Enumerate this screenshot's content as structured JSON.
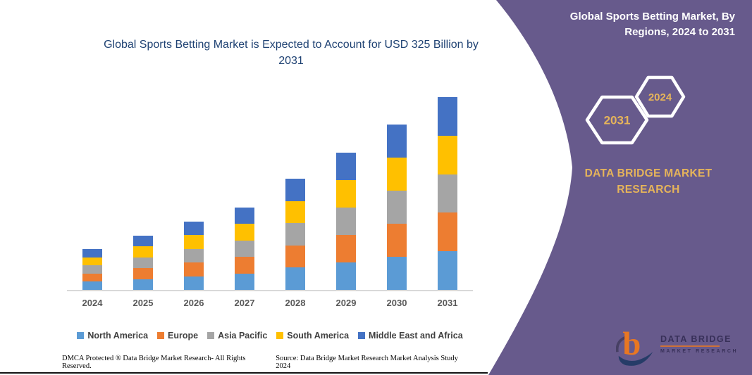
{
  "left_panel": {
    "title": "Global Sports Betting Market is Expected to Account for USD 325 Billion by 2031",
    "footer_left": "DMCA Protected ® Data Bridge Market Research-  All Rights Reserved.",
    "footer_right": "Source: Data Bridge Market Research  Market Analysis Study 2024"
  },
  "right_panel": {
    "title": "Global Sports Betting Market, By Regions, 2024 to 2031",
    "hexagon_back_label": "2031",
    "hexagon_front_label": "2024",
    "brand_text": "DATA BRIDGE MARKET RESEARCH",
    "logo_line1": "DATA BRIDGE",
    "logo_line2": "MARKET RESEARCH",
    "colors": {
      "background_purple": "#675A8C",
      "accent_gold": "#E6B45A",
      "title_white": "#FFFFFF",
      "logo_orange": "#E87722",
      "logo_blue": "#1F3864"
    }
  },
  "chart_data": {
    "type": "bar",
    "stacked": true,
    "title": "Global Sports Betting Market is Expected to Account for USD 325 Billion by 2031",
    "subtitle": "Global Sports Betting Market, By Regions, 2024 to 2031",
    "unit": "USD Billion",
    "categories": [
      "2024",
      "2025",
      "2026",
      "2027",
      "2028",
      "2029",
      "2030",
      "2031"
    ],
    "series": [
      {
        "name": "North America",
        "color": "#5B9BD5",
        "values": [
          13.8,
          18.4,
          23.0,
          27.8,
          37.4,
          46.2,
          55.8,
          65.0
        ]
      },
      {
        "name": "Europe",
        "color": "#ED7D31",
        "values": [
          13.8,
          18.4,
          23.0,
          27.8,
          37.4,
          46.2,
          55.8,
          65.0
        ]
      },
      {
        "name": "Asia Pacific",
        "color": "#A5A5A5",
        "values": [
          13.8,
          18.4,
          23.0,
          27.8,
          37.4,
          46.2,
          55.8,
          65.0
        ]
      },
      {
        "name": "South America",
        "color": "#FFC000",
        "values": [
          13.8,
          18.4,
          23.0,
          27.8,
          37.4,
          46.2,
          55.8,
          65.0
        ]
      },
      {
        "name": "Middle East and Africa",
        "color": "#4472C4",
        "values": [
          13.8,
          18.4,
          23.0,
          27.8,
          37.4,
          46.2,
          55.8,
          65.0
        ]
      }
    ],
    "totals": [
      69,
      92,
      115,
      139,
      187,
      231,
      279,
      325
    ],
    "ylim": [
      0,
      338
    ],
    "xlabel": "",
    "ylabel": "",
    "gridlines": false,
    "y_axis_visible": false,
    "legend_position": "bottom",
    "title_color": "#1F4273",
    "axis_line_color": "#D9D9D9"
  }
}
